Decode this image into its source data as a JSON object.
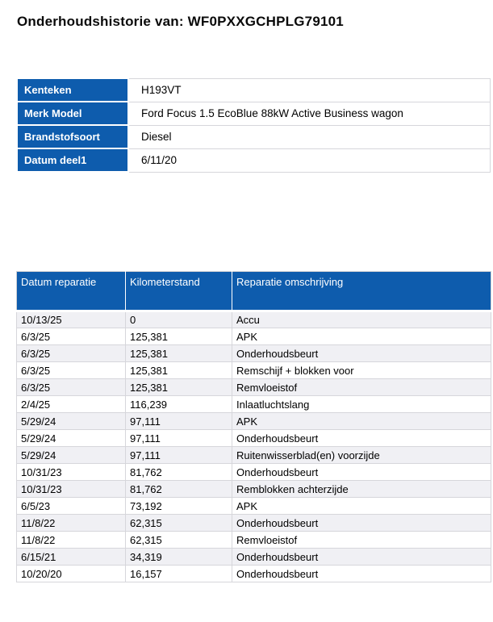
{
  "page": {
    "title": "Onderhoudshistorie van: WF0PXXGCHPLG79101"
  },
  "colors": {
    "header_blue": "#0e5cad",
    "row_stripe": "#f0f0f4",
    "border": "#d6d6db"
  },
  "vehicle_info": {
    "rows": [
      {
        "label": "Kenteken",
        "value": "H193VT"
      },
      {
        "label": "Merk Model",
        "value": "Ford Focus 1.5 EcoBlue 88kW Active Business wagon"
      },
      {
        "label": "Brandstofsoort",
        "value": "Diesel"
      },
      {
        "label": "Datum deel1",
        "value": "6/11/20"
      }
    ]
  },
  "repair_history": {
    "columns": [
      "Datum reparatie",
      "Kilometerstand",
      "Reparatie omschrijving"
    ],
    "rows": [
      [
        "10/13/25",
        "0",
        "Accu"
      ],
      [
        "6/3/25",
        "125,381",
        "APK"
      ],
      [
        "6/3/25",
        "125,381",
        "Onderhoudsbeurt"
      ],
      [
        "6/3/25",
        "125,381",
        "Remschijf + blokken voor"
      ],
      [
        "6/3/25",
        "125,381",
        "Remvloeistof"
      ],
      [
        "2/4/25",
        "116,239",
        "Inlaatluchtslang"
      ],
      [
        "5/29/24",
        "97,111",
        "APK"
      ],
      [
        "5/29/24",
        "97,111",
        "Onderhoudsbeurt"
      ],
      [
        "5/29/24",
        "97,111",
        "Ruitenwisserblad(en) voorzijde"
      ],
      [
        "10/31/23",
        "81,762",
        "Onderhoudsbeurt"
      ],
      [
        "10/31/23",
        "81,762",
        "Remblokken achterzijde"
      ],
      [
        "6/5/23",
        "73,192",
        "APK"
      ],
      [
        "11/8/22",
        "62,315",
        "Onderhoudsbeurt"
      ],
      [
        "11/8/22",
        "62,315",
        "Remvloeistof"
      ],
      [
        "6/15/21",
        "34,319",
        "Onderhoudsbeurt"
      ],
      [
        "10/20/20",
        "16,157",
        "Onderhoudsbeurt"
      ]
    ]
  }
}
